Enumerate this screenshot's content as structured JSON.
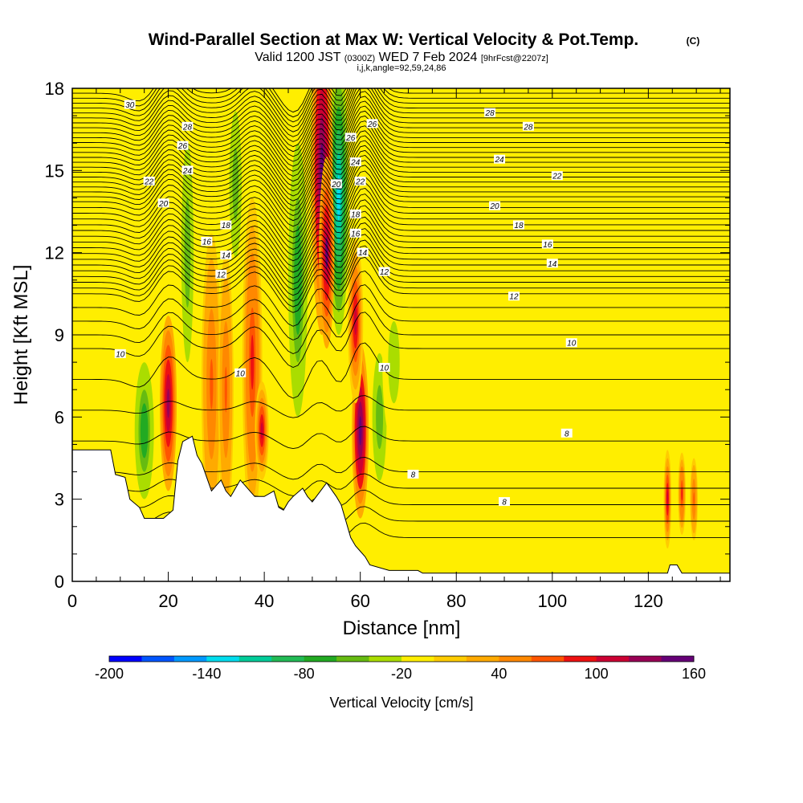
{
  "title": {
    "main": "Wind-Parallel Section at Max W: Vertical Velocity & Pot.Temp.",
    "main_suffix": "(C)",
    "valid_prefix": "Valid 1200 JST",
    "valid_utc": "(0300Z)",
    "valid_date": "WED 7 Feb 2024",
    "forecast": "[9hrFcst@2207z]",
    "indices": "i,j,k,angle=92,59,24,86"
  },
  "chart_data": {
    "type": "heatmap",
    "xlabel": "Distance [nm]",
    "ylabel": "Height [Kft MSL]",
    "xlim": [
      0,
      137
    ],
    "ylim": [
      0,
      18
    ],
    "x_ticks": [
      "0",
      "20",
      "40",
      "60",
      "80",
      "100",
      "120"
    ],
    "y_ticks": [
      "0",
      "3",
      "6",
      "9",
      "12",
      "15",
      "18"
    ],
    "colorbar": {
      "title": "Vertical Velocity [cm/s]",
      "range": [
        -200,
        160
      ],
      "step": 20,
      "labels": [
        "-200",
        "-140",
        "-80",
        "-20",
        "40",
        "100",
        "160"
      ],
      "colors": [
        "#0000ff",
        "#0055ff",
        "#0099ff",
        "#00ddee",
        "#00cc99",
        "#22bb55",
        "#22aa22",
        "#66bb11",
        "#aadd00",
        "#ffee00",
        "#ffcc00",
        "#ffaa00",
        "#ff8800",
        "#ff5500",
        "#ee1111",
        "#cc0033",
        "#990055",
        "#660077"
      ]
    },
    "terrain_kft": [
      [
        0,
        4.8
      ],
      [
        8,
        4.8
      ],
      [
        9,
        3.9
      ],
      [
        11,
        3.8
      ],
      [
        12,
        3.0
      ],
      [
        14,
        2.7
      ],
      [
        15,
        2.3
      ],
      [
        19,
        2.3
      ],
      [
        21,
        2.6
      ],
      [
        22,
        4.4
      ],
      [
        23,
        5.1
      ],
      [
        25,
        5.3
      ],
      [
        26,
        4.6
      ],
      [
        27,
        4.3
      ],
      [
        28,
        3.8
      ],
      [
        29,
        3.3
      ],
      [
        30,
        3.5
      ],
      [
        31,
        3.7
      ],
      [
        32,
        3.3
      ],
      [
        33,
        3.1
      ],
      [
        34,
        3.4
      ],
      [
        35,
        3.7
      ],
      [
        36,
        3.5
      ],
      [
        37,
        3.3
      ],
      [
        38,
        3.1
      ],
      [
        40,
        3.1
      ],
      [
        42,
        3.3
      ],
      [
        43,
        2.7
      ],
      [
        44,
        2.6
      ],
      [
        45,
        2.9
      ],
      [
        46,
        3.1
      ],
      [
        48,
        3.4
      ],
      [
        49,
        3.1
      ],
      [
        50,
        2.9
      ],
      [
        53,
        3.6
      ],
      [
        55,
        3.1
      ],
      [
        56,
        2.8
      ],
      [
        57,
        2.2
      ],
      [
        58,
        1.6
      ],
      [
        59,
        1.3
      ],
      [
        60,
        1.1
      ],
      [
        61,
        0.9
      ],
      [
        62,
        0.6
      ],
      [
        66,
        0.4
      ],
      [
        68,
        0.4
      ],
      [
        72,
        0.4
      ],
      [
        73,
        0.3
      ],
      [
        124,
        0.3
      ],
      [
        124.5,
        0.6
      ],
      [
        126,
        0.6
      ],
      [
        127,
        0.3
      ],
      [
        137,
        0.3
      ]
    ],
    "updrafts": [
      {
        "x": 20,
        "y_center": 6.5,
        "half_height": 3.2,
        "half_width": 1.1,
        "peak": 120
      },
      {
        "x": 29,
        "y_center": 7.2,
        "half_height": 5.5,
        "half_width": 1.3,
        "peak": 60
      },
      {
        "x": 32,
        "y_center": 7.0,
        "half_height": 5.0,
        "half_width": 1.0,
        "peak": 60
      },
      {
        "x": 37.5,
        "y_center": 8.0,
        "half_height": 6.0,
        "half_width": 1.3,
        "peak": 80
      },
      {
        "x": 39.5,
        "y_center": 5.5,
        "half_height": 1.8,
        "half_width": 0.9,
        "peak": 100
      },
      {
        "x": 52,
        "y_center": 15.0,
        "half_height": 6.0,
        "half_width": 1.4,
        "peak": 160
      },
      {
        "x": 53,
        "y_center": 12.0,
        "half_height": 3.5,
        "half_width": 1.0,
        "peak": 140
      },
      {
        "x": 60,
        "y_center": 5.5,
        "half_height": 3.2,
        "half_width": 1.1,
        "peak": 160
      },
      {
        "x": 59,
        "y_center": 9.5,
        "half_height": 3.0,
        "half_width": 1.0,
        "peak": 100
      },
      {
        "x": 124,
        "y_center": 3.0,
        "half_height": 1.8,
        "half_width": 0.5,
        "peak": 100
      },
      {
        "x": 127,
        "y_center": 3.2,
        "half_height": 1.5,
        "half_width": 0.5,
        "peak": 80
      },
      {
        "x": 129.5,
        "y_center": 3.0,
        "half_height": 1.5,
        "half_width": 0.5,
        "peak": 70
      }
    ],
    "downdrafts": [
      {
        "x": 15,
        "y_center": 5.5,
        "half_height": 3.0,
        "half_width": 1.5,
        "peak": -80
      },
      {
        "x": 24,
        "y_center": 12.0,
        "half_height": 6.0,
        "half_width": 1.2,
        "peak": -60
      },
      {
        "x": 34,
        "y_center": 14.5,
        "half_height": 4.0,
        "half_width": 1.2,
        "peak": -60
      },
      {
        "x": 47,
        "y_center": 11.0,
        "half_height": 6.0,
        "half_width": 1.5,
        "peak": -80
      },
      {
        "x": 55.5,
        "y_center": 14.0,
        "half_height": 5.0,
        "half_width": 1.3,
        "peak": -140
      },
      {
        "x": 64,
        "y_center": 6.0,
        "half_height": 3.5,
        "half_width": 1.4,
        "peak": -60
      },
      {
        "x": 67,
        "y_center": 8.0,
        "half_height": 3.0,
        "half_width": 1.5,
        "peak": -40
      }
    ],
    "isentropes": {
      "levels": [
        6,
        8,
        10,
        12,
        14,
        16,
        18,
        20,
        22,
        24,
        26,
        28,
        30
      ],
      "labeled": [
        {
          "text": "30",
          "x": 12,
          "y": 17.4
        },
        {
          "text": "28",
          "x": 24,
          "y": 16.6
        },
        {
          "text": "26",
          "x": 23,
          "y": 15.9
        },
        {
          "text": "24",
          "x": 24,
          "y": 15.0
        },
        {
          "text": "22",
          "x": 16,
          "y": 14.6
        },
        {
          "text": "20",
          "x": 19,
          "y": 13.8
        },
        {
          "text": "18",
          "x": 32,
          "y": 13.0
        },
        {
          "text": "16",
          "x": 28,
          "y": 12.4
        },
        {
          "text": "14",
          "x": 32,
          "y": 11.9
        },
        {
          "text": "12",
          "x": 31,
          "y": 11.2
        },
        {
          "text": "10",
          "x": 10,
          "y": 8.3
        },
        {
          "text": "10",
          "x": 35,
          "y": 7.6
        },
        {
          "text": "26",
          "x": 62.5,
          "y": 16.7
        },
        {
          "text": "26",
          "x": 58,
          "y": 16.2
        },
        {
          "text": "24",
          "x": 59,
          "y": 15.3
        },
        {
          "text": "20",
          "x": 55,
          "y": 14.5
        },
        {
          "text": "22",
          "x": 60,
          "y": 14.6
        },
        {
          "text": "18",
          "x": 59,
          "y": 13.4
        },
        {
          "text": "16",
          "x": 59,
          "y": 12.7
        },
        {
          "text": "14",
          "x": 60.5,
          "y": 12.0
        },
        {
          "text": "12",
          "x": 65,
          "y": 11.3
        },
        {
          "text": "10",
          "x": 65,
          "y": 7.8
        },
        {
          "text": "8",
          "x": 71,
          "y": 3.9
        },
        {
          "text": "8",
          "x": 90,
          "y": 2.9
        },
        {
          "text": "28",
          "x": 87,
          "y": 17.1
        },
        {
          "text": "28",
          "x": 95,
          "y": 16.6
        },
        {
          "text": "24",
          "x": 89,
          "y": 15.4
        },
        {
          "text": "22",
          "x": 101,
          "y": 14.8
        },
        {
          "text": "20",
          "x": 88,
          "y": 13.7
        },
        {
          "text": "18",
          "x": 93,
          "y": 13.0
        },
        {
          "text": "16",
          "x": 99,
          "y": 12.3
        },
        {
          "text": "14",
          "x": 100,
          "y": 11.6
        },
        {
          "text": "12",
          "x": 92,
          "y": 10.4
        },
        {
          "text": "10",
          "x": 104,
          "y": 8.7
        },
        {
          "text": "8",
          "x": 103,
          "y": 5.4
        }
      ]
    }
  }
}
